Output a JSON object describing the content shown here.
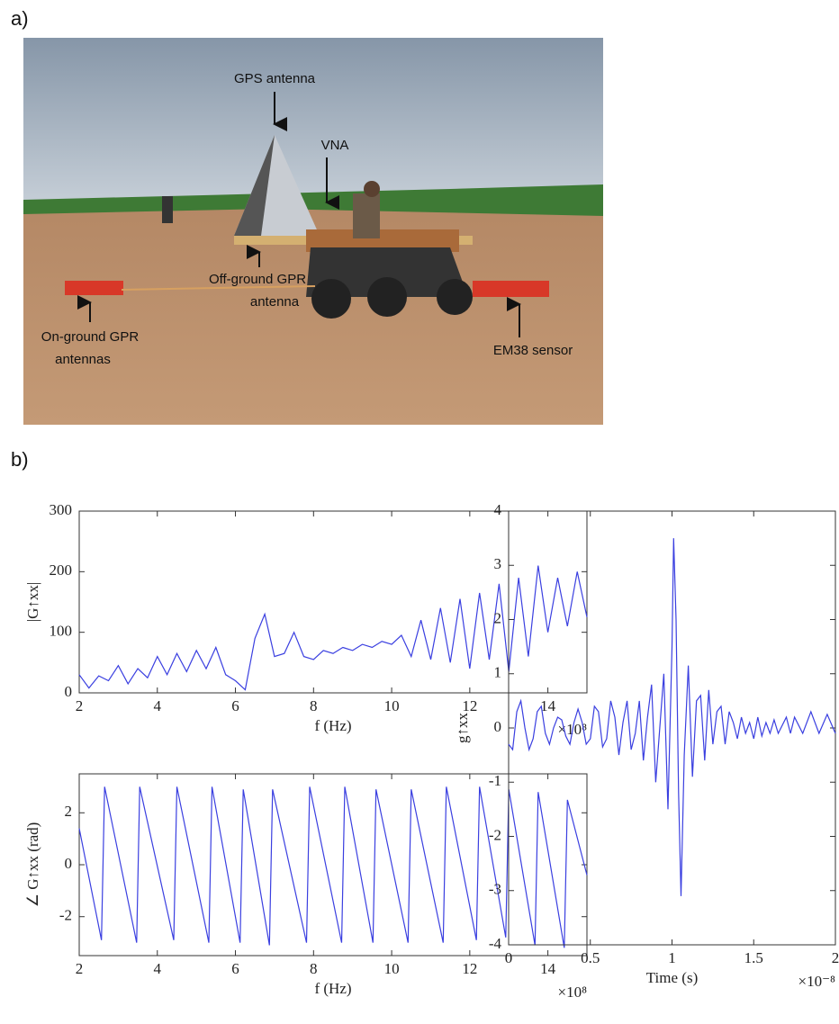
{
  "panels": [
    "a)",
    "b)"
  ],
  "photo": {
    "annotations": [
      "GPS antenna",
      "VNA",
      "Off-ground GPR",
      "antenna",
      "On-ground GPR",
      "antennas",
      "EM38 sensor"
    ]
  },
  "chart_data": [
    {
      "type": "line",
      "ylabel": "|G↑xx|",
      "xlabel": "f (Hz)",
      "x_multiplier": "×10⁸",
      "xlim": [
        2,
        15
      ],
      "ylim": [
        0,
        300
      ],
      "xticks": [
        2,
        4,
        6,
        8,
        10,
        12,
        14
      ],
      "yticks": [
        0,
        100,
        200,
        300
      ],
      "series": [
        {
          "color": "#3a3fe0",
          "x": [
            2,
            2.25,
            2.5,
            2.75,
            3,
            3.25,
            3.5,
            3.75,
            4,
            4.25,
            4.5,
            4.75,
            5,
            5.25,
            5.5,
            5.75,
            6,
            6.25,
            6.5,
            6.75,
            7,
            7.25,
            7.5,
            7.75,
            8,
            8.25,
            8.5,
            8.75,
            9,
            9.25,
            9.5,
            9.75,
            10,
            10.25,
            10.5,
            10.75,
            11,
            11.25,
            11.5,
            11.75,
            12,
            12.25,
            12.5,
            12.75,
            13,
            13.25,
            13.5,
            13.75,
            14,
            14.25,
            14.5,
            14.75,
            15
          ],
          "values": [
            30,
            8,
            28,
            20,
            45,
            15,
            40,
            25,
            60,
            30,
            65,
            35,
            70,
            40,
            75,
            30,
            20,
            5,
            90,
            130,
            60,
            65,
            100,
            60,
            55,
            70,
            65,
            75,
            70,
            80,
            75,
            85,
            80,
            95,
            60,
            120,
            55,
            140,
            50,
            155,
            40,
            165,
            55,
            180,
            35,
            190,
            60,
            210,
            100,
            190,
            110,
            200,
            125
          ]
        }
      ]
    },
    {
      "type": "line",
      "ylabel": "∠ G↑xx (rad)",
      "xlabel": "f (Hz)",
      "x_multiplier": "×10⁸",
      "xlim": [
        2,
        15
      ],
      "ylim": [
        -3.5,
        3.5
      ],
      "xticks": [
        2,
        4,
        6,
        8,
        10,
        12,
        14
      ],
      "yticks": [
        -2,
        0,
        2
      ],
      "series": [
        {
          "color": "#3a3fe0",
          "x": [
            2,
            2.57,
            2.65,
            3.47,
            3.55,
            4.42,
            4.5,
            5.32,
            5.4,
            6.12,
            6.2,
            6.87,
            6.95,
            7.82,
            7.9,
            8.72,
            8.8,
            9.52,
            9.6,
            10.42,
            10.5,
            11.32,
            11.4,
            12.17,
            12.25,
            12.92,
            13,
            13.67,
            13.75,
            14.42,
            14.5,
            15
          ],
          "values": [
            1.4,
            -2.9,
            3,
            -3,
            3,
            -2.9,
            3,
            -3,
            3,
            -3,
            2.9,
            -3.1,
            2.9,
            -3,
            3,
            -3,
            3,
            -3,
            2.9,
            -3,
            2.9,
            -3,
            3,
            -2.9,
            3,
            -2.8,
            2.9,
            -3.1,
            2.8,
            -3.2,
            2.5,
            -0.4
          ]
        }
      ]
    },
    {
      "type": "line",
      "ylabel": "g↑xx",
      "xlabel": "Time (s)",
      "x_multiplier": "×10⁻⁸",
      "xlim": [
        0,
        2
      ],
      "ylim": [
        -4,
        4
      ],
      "xticks": [
        0,
        0.5,
        1,
        1.5,
        2
      ],
      "yticks": [
        -4,
        -3,
        -2,
        -1,
        0,
        1,
        2,
        3,
        4
      ],
      "series": [
        {
          "color": "#3a3fe0",
          "x": [
            0,
            0.025,
            0.05,
            0.075,
            0.1,
            0.125,
            0.15,
            0.175,
            0.2,
            0.225,
            0.25,
            0.275,
            0.3,
            0.325,
            0.35,
            0.375,
            0.4,
            0.425,
            0.45,
            0.475,
            0.5,
            0.525,
            0.55,
            0.575,
            0.6,
            0.625,
            0.65,
            0.675,
            0.7,
            0.725,
            0.75,
            0.775,
            0.8,
            0.825,
            0.85,
            0.875,
            0.9,
            0.925,
            0.95,
            0.975,
            1,
            1.01,
            1.025,
            1.04,
            1.055,
            1.075,
            1.1,
            1.125,
            1.15,
            1.175,
            1.2,
            1.225,
            1.25,
            1.275,
            1.3,
            1.325,
            1.35,
            1.375,
            1.4,
            1.425,
            1.45,
            1.475,
            1.5,
            1.525,
            1.55,
            1.575,
            1.6,
            1.625,
            1.65,
            1.7,
            1.725,
            1.75,
            1.8,
            1.85,
            1.9,
            1.95,
            2
          ],
          "values": [
            -0.3,
            -0.4,
            0.3,
            0.5,
            0,
            -0.4,
            -0.2,
            0.3,
            0.4,
            -0.1,
            -0.3,
            0,
            0.2,
            0.15,
            -0.15,
            -0.3,
            0.1,
            0.35,
            0.1,
            -0.3,
            -0.2,
            0.4,
            0.3,
            -0.35,
            -0.2,
            0.5,
            0.2,
            -0.5,
            0.1,
            0.5,
            -0.4,
            -0.1,
            0.5,
            -0.6,
            0.2,
            0.8,
            -1,
            0,
            1,
            -1.5,
            1.5,
            3.5,
            2,
            -1.2,
            -3.1,
            -0.5,
            1.15,
            -0.9,
            0.5,
            0.6,
            -0.6,
            0.7,
            -0.3,
            0.3,
            0.4,
            -0.3,
            0.3,
            0.1,
            -0.2,
            0.2,
            -0.1,
            0.1,
            -0.2,
            0.2,
            -0.15,
            0.1,
            -0.1,
            0.15,
            -0.1,
            0.2,
            -0.1,
            0.2,
            -0.1,
            0.3,
            -0.1,
            0.25,
            -0.1
          ]
        }
      ]
    }
  ]
}
